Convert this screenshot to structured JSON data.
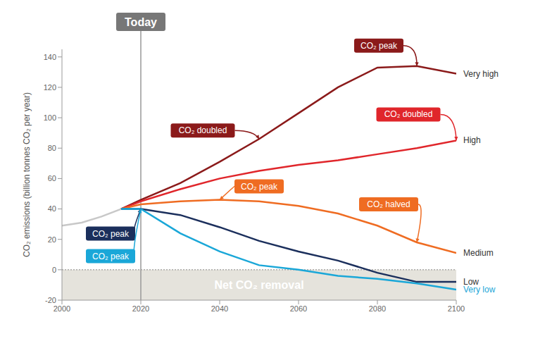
{
  "chart_data": {
    "type": "line",
    "y_label": "CO₂ emissions (billion tonnes CO₂ per year)",
    "x": [
      2000,
      2005,
      2010,
      2015,
      2020,
      2030,
      2040,
      2050,
      2060,
      2070,
      2080,
      2090,
      2100
    ],
    "series": [
      {
        "color": "#c8c8c8",
        "values": [
          29,
          31,
          35,
          40,
          null,
          null,
          null,
          null,
          null,
          null,
          null,
          null,
          null
        ]
      },
      {
        "name": "Very high",
        "color": "#8b1a1a",
        "values": [
          null,
          null,
          null,
          40,
          46,
          57,
          71,
          86,
          103,
          120,
          133,
          134,
          129
        ]
      },
      {
        "name": "High",
        "color": "#e0262b",
        "values": [
          null,
          null,
          null,
          40,
          45,
          53,
          60,
          65,
          69,
          72,
          76,
          80,
          85
        ]
      },
      {
        "name": "Medium",
        "color": "#ef6c22",
        "values": [
          null,
          null,
          null,
          40,
          43,
          45,
          46,
          45,
          42,
          37,
          29,
          18,
          11
        ]
      },
      {
        "name": "Low",
        "color": "#1b2f5c",
        "values": [
          null,
          null,
          null,
          40,
          40,
          36,
          28,
          19,
          12,
          6,
          -2,
          -8,
          -8
        ]
      },
      {
        "name": "Very low",
        "color": "#1aa7d8",
        "values": [
          null,
          null,
          null,
          40,
          40,
          24,
          12,
          3,
          0,
          -4,
          -6,
          -9,
          -13
        ]
      }
    ],
    "xlim": [
      2000,
      2100
    ],
    "xticks": [
      2000,
      2020,
      2040,
      2060,
      2080,
      2100
    ],
    "ylim": [
      -20,
      145
    ],
    "yticks": [
      -20,
      0,
      20,
      40,
      60,
      80,
      100,
      120,
      140
    ],
    "grid": false,
    "today": {
      "x": 2020,
      "label": "Today"
    },
    "region": {
      "label": "Net CO₂ removal",
      "y": [
        -20,
        0
      ]
    },
    "annotations": [
      {
        "text": "CO₂ doubled",
        "series": "Very high",
        "x": 2050
      },
      {
        "text": "CO₂ peak",
        "series": "Very high",
        "x": 2090
      },
      {
        "text": "CO₂ doubled",
        "series": "High",
        "x": 2100
      },
      {
        "text": "CO₂ peak",
        "series": "Medium",
        "x": 2040
      },
      {
        "text": "CO₂ halved",
        "series": "Medium",
        "x": 2090
      },
      {
        "text": "CO₂ peak",
        "series": "Low",
        "x": 2020
      },
      {
        "text": "CO₂ peak",
        "series": "Very low",
        "x": 2020
      }
    ]
  }
}
